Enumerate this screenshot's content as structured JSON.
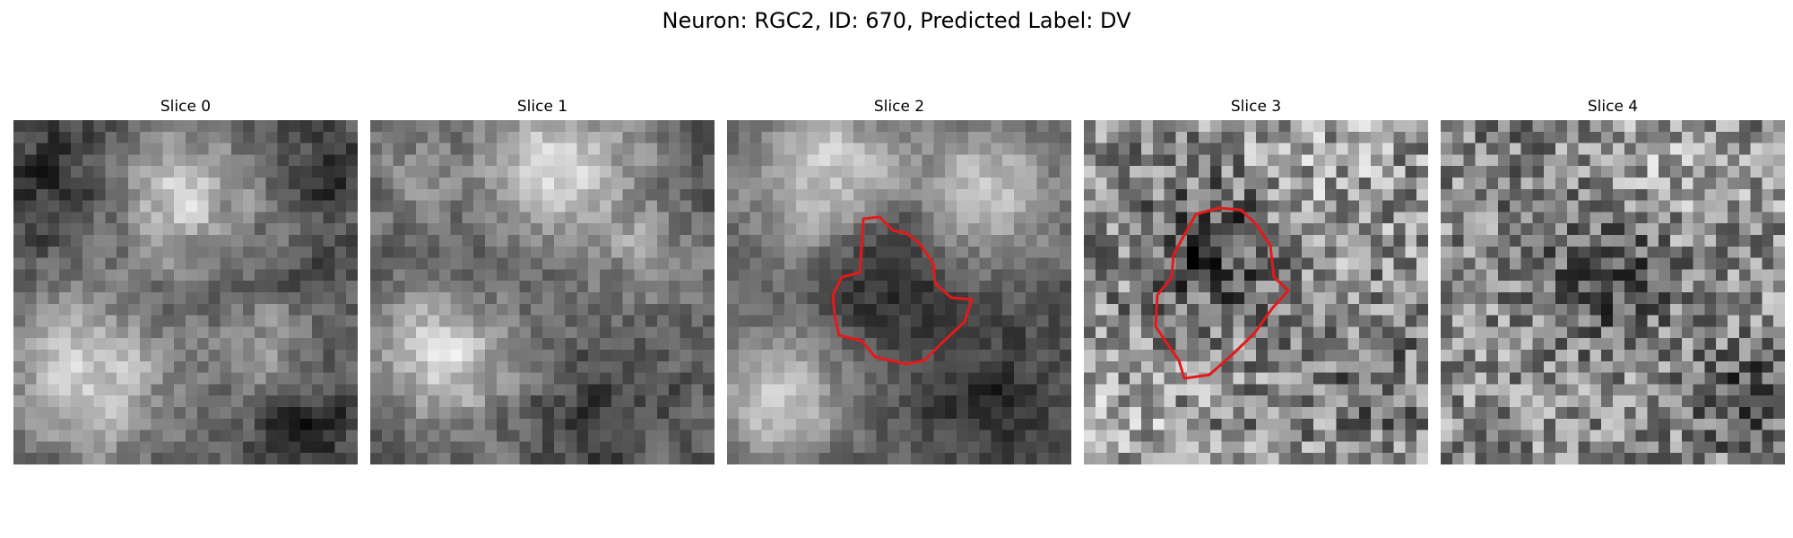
{
  "figure": {
    "title": "Neuron: RGC2, ID: 670, Predicted Label: DV",
    "outline_color": "#e31a1c",
    "colormap": "gray"
  },
  "panels": [
    {
      "title": "Slice 0",
      "has_outline": false
    },
    {
      "title": "Slice 1",
      "has_outline": false
    },
    {
      "title": "Slice 2",
      "has_outline": true
    },
    {
      "title": "Slice 3",
      "has_outline": true
    },
    {
      "title": "Slice 4",
      "has_outline": false
    }
  ]
}
